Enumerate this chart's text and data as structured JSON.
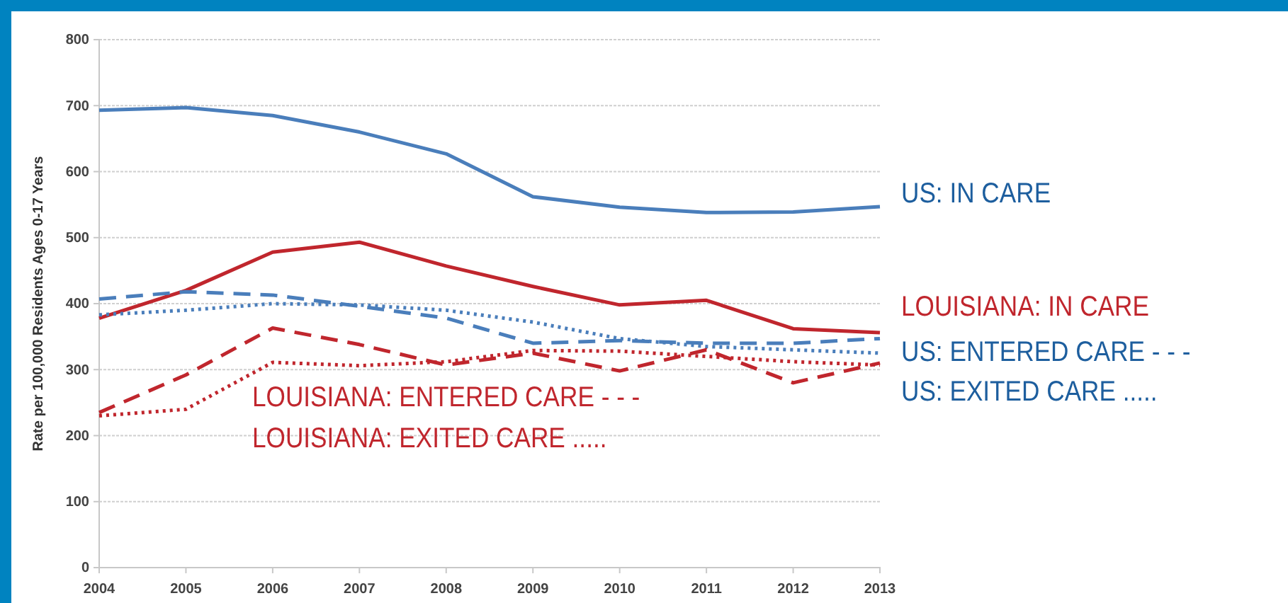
{
  "chart_data": {
    "type": "line",
    "ylabel": "Rate per 100,000 Residents Ages 0-17 Years",
    "x": [
      2004,
      2005,
      2006,
      2007,
      2008,
      2009,
      2010,
      2011,
      2012,
      2013
    ],
    "xlim": [
      2004,
      2013
    ],
    "xticks": [
      2004,
      2005,
      2006,
      2007,
      2008,
      2009,
      2010,
      2011,
      2012,
      2013
    ],
    "ylim": [
      0,
      800
    ],
    "yticks": [
      0,
      100,
      200,
      300,
      400,
      500,
      600,
      700,
      800
    ],
    "grid": "y",
    "marker": "none",
    "series": [
      {
        "name": "US: IN CARE",
        "color": "#4a7ebb",
        "line_style": "solid",
        "values": [
          693,
          697,
          685,
          660,
          627,
          562,
          546,
          538,
          539,
          547
        ]
      },
      {
        "name": "LOUISIANA: IN CARE",
        "color": "#c0262d",
        "line_style": "solid",
        "values": [
          378,
          420,
          478,
          493,
          457,
          426,
          398,
          405,
          362,
          356
        ]
      },
      {
        "name": "US: ENTERED CARE - - -",
        "color": "#4a7ebb",
        "line_style": "dashed",
        "values": [
          407,
          418,
          413,
          396,
          378,
          340,
          344,
          340,
          340,
          347
        ]
      },
      {
        "name": "US: EXITED CARE .....",
        "color": "#4a7ebb",
        "line_style": "dotted",
        "values": [
          383,
          390,
          400,
          398,
          390,
          372,
          347,
          335,
          330,
          325
        ]
      },
      {
        "name": "LOUISIANA: ENTERED CARE - - -",
        "color": "#c0262d",
        "line_style": "dashed",
        "values": [
          235,
          292,
          363,
          338,
          307,
          325,
          298,
          330,
          280,
          310
        ]
      },
      {
        "name": "LOUISIANA: EXITED CARE .....",
        "color": "#c0262d",
        "line_style": "dotted",
        "values": [
          230,
          240,
          311,
          306,
          312,
          329,
          328,
          320,
          312,
          307
        ]
      }
    ]
  }
}
